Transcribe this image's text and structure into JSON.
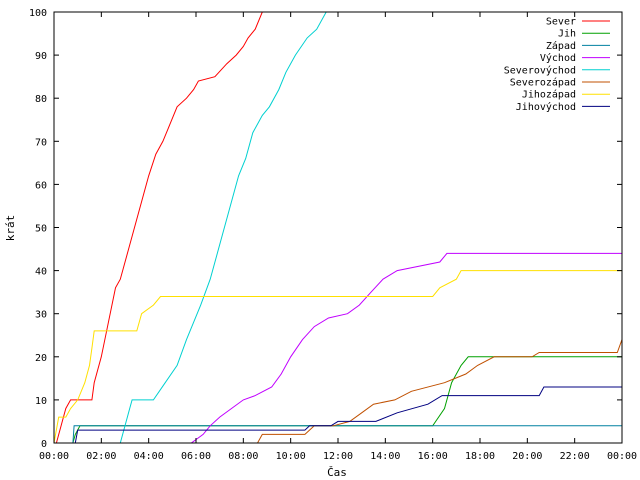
{
  "chart_data": {
    "type": "line",
    "title": "",
    "xlabel": "Čas",
    "ylabel": "krát",
    "xlim": [
      0,
      24
    ],
    "ylim": [
      0,
      100
    ],
    "x_ticks": [
      0,
      2,
      4,
      6,
      8,
      10,
      12,
      14,
      16,
      18,
      20,
      22,
      24
    ],
    "x_tick_labels": [
      "00:00",
      "02:00",
      "04:00",
      "06:00",
      "08:00",
      "10:00",
      "12:00",
      "14:00",
      "16:00",
      "18:00",
      "20:00",
      "22:00",
      "00:00"
    ],
    "y_ticks": [
      0,
      10,
      20,
      30,
      40,
      50,
      60,
      70,
      80,
      90,
      100
    ],
    "grid": false,
    "legend_position": "top-right",
    "series": [
      {
        "name": "Sever",
        "color": "#ff0000",
        "points": [
          [
            0.1,
            0
          ],
          [
            0.3,
            4
          ],
          [
            0.5,
            8
          ],
          [
            0.7,
            10
          ],
          [
            1.6,
            10
          ],
          [
            1.7,
            14
          ],
          [
            2.0,
            20
          ],
          [
            2.3,
            28
          ],
          [
            2.6,
            36
          ],
          [
            2.8,
            38
          ],
          [
            3.1,
            44
          ],
          [
            3.4,
            50
          ],
          [
            3.7,
            56
          ],
          [
            4.0,
            62
          ],
          [
            4.3,
            67
          ],
          [
            4.6,
            70
          ],
          [
            4.9,
            74
          ],
          [
            5.2,
            78
          ],
          [
            5.6,
            80
          ],
          [
            5.9,
            82
          ],
          [
            6.1,
            84
          ],
          [
            6.8,
            85
          ],
          [
            7.3,
            88
          ],
          [
            7.7,
            90
          ],
          [
            8.0,
            92
          ],
          [
            8.2,
            94
          ],
          [
            8.5,
            96
          ],
          [
            8.8,
            100
          ]
        ]
      },
      {
        "name": "Jih",
        "color": "#00a000",
        "points": [
          [
            0,
            0
          ],
          [
            0.8,
            0
          ],
          [
            0.9,
            2
          ],
          [
            1.1,
            4
          ],
          [
            16.0,
            4
          ],
          [
            16.5,
            8
          ],
          [
            16.8,
            14
          ],
          [
            17.2,
            18
          ],
          [
            17.5,
            20
          ],
          [
            24,
            20
          ]
        ]
      },
      {
        "name": "Západ",
        "color": "#0080a0",
        "points": [
          [
            0,
            0
          ],
          [
            0.8,
            0
          ],
          [
            0.85,
            4
          ],
          [
            24,
            4
          ]
        ]
      },
      {
        "name": "Východ",
        "color": "#c000ff",
        "points": [
          [
            0,
            0
          ],
          [
            5.8,
            0
          ],
          [
            6.3,
            2
          ],
          [
            6.6,
            4
          ],
          [
            7.0,
            6
          ],
          [
            7.5,
            8
          ],
          [
            8.0,
            10
          ],
          [
            8.5,
            11
          ],
          [
            9.2,
            13
          ],
          [
            9.6,
            16
          ],
          [
            10.0,
            20
          ],
          [
            10.5,
            24
          ],
          [
            11.0,
            27
          ],
          [
            11.6,
            29
          ],
          [
            12.4,
            30
          ],
          [
            12.9,
            32
          ],
          [
            13.4,
            35
          ],
          [
            13.9,
            38
          ],
          [
            14.5,
            40
          ],
          [
            16.3,
            42
          ],
          [
            16.6,
            44
          ],
          [
            24,
            44
          ]
        ]
      },
      {
        "name": "Severovýchod",
        "color": "#00d0d0",
        "points": [
          [
            0,
            0
          ],
          [
            2.8,
            0
          ],
          [
            3.0,
            4
          ],
          [
            3.2,
            8
          ],
          [
            3.3,
            10
          ],
          [
            4.2,
            10
          ],
          [
            4.7,
            14
          ],
          [
            5.2,
            18
          ],
          [
            5.6,
            24
          ],
          [
            5.9,
            28
          ],
          [
            6.2,
            32
          ],
          [
            6.6,
            38
          ],
          [
            6.9,
            44
          ],
          [
            7.2,
            50
          ],
          [
            7.5,
            56
          ],
          [
            7.8,
            62
          ],
          [
            8.1,
            66
          ],
          [
            8.4,
            72
          ],
          [
            8.8,
            76
          ],
          [
            9.1,
            78
          ],
          [
            9.5,
            82
          ],
          [
            9.8,
            86
          ],
          [
            10.2,
            90
          ],
          [
            10.7,
            94
          ],
          [
            11.1,
            96
          ],
          [
            11.5,
            100
          ]
        ]
      },
      {
        "name": "Severozápad",
        "color": "#c05000",
        "points": [
          [
            0,
            0
          ],
          [
            8.6,
            0
          ],
          [
            8.8,
            2
          ],
          [
            10.6,
            2
          ],
          [
            11.0,
            4
          ],
          [
            11.8,
            4
          ],
          [
            12.5,
            5
          ],
          [
            13.0,
            7
          ],
          [
            13.5,
            9
          ],
          [
            14.4,
            10
          ],
          [
            15.1,
            12
          ],
          [
            16.5,
            14
          ],
          [
            17.4,
            16
          ],
          [
            17.9,
            18
          ],
          [
            18.6,
            20
          ],
          [
            20.2,
            20
          ],
          [
            20.5,
            21
          ],
          [
            23.8,
            21
          ],
          [
            24,
            24
          ]
        ]
      },
      {
        "name": "Jihozápad",
        "color": "#ffe000",
        "points": [
          [
            0,
            0
          ],
          [
            0.2,
            6
          ],
          [
            0.5,
            6
          ],
          [
            0.7,
            8
          ],
          [
            1.0,
            10
          ],
          [
            1.3,
            14
          ],
          [
            1.5,
            18
          ],
          [
            1.6,
            22
          ],
          [
            1.7,
            26
          ],
          [
            3.5,
            26
          ],
          [
            3.7,
            30
          ],
          [
            4.2,
            32
          ],
          [
            4.5,
            34
          ],
          [
            16.0,
            34
          ],
          [
            16.3,
            36
          ],
          [
            17.0,
            38
          ],
          [
            17.2,
            40
          ],
          [
            24,
            40
          ]
        ]
      },
      {
        "name": "Jihovýchod",
        "color": "#000080",
        "points": [
          [
            0,
            0
          ],
          [
            0.9,
            0
          ],
          [
            1.0,
            3
          ],
          [
            10.6,
            3
          ],
          [
            10.8,
            4
          ],
          [
            11.7,
            4
          ],
          [
            12.0,
            5
          ],
          [
            13.6,
            5
          ],
          [
            14.5,
            7
          ],
          [
            15.8,
            9
          ],
          [
            16.4,
            11
          ],
          [
            20.5,
            11
          ],
          [
            20.7,
            13
          ],
          [
            24,
            13
          ]
        ]
      }
    ]
  }
}
